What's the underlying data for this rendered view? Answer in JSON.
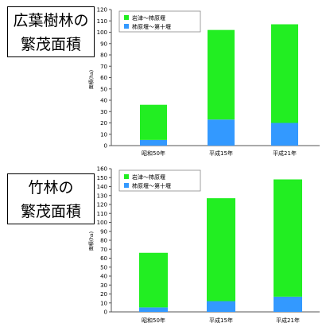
{
  "labels": {
    "chart1": [
      "広葉樹林の",
      "繁茂面積"
    ],
    "chart2": [
      "竹林の",
      "繁茂面積"
    ]
  },
  "chart_data": [
    {
      "type": "bar",
      "stacked": true,
      "categories": [
        "昭和50年",
        "平成15年",
        "平成21年"
      ],
      "series": [
        {
          "name": "柿原堰～第十堰",
          "color": "#3399ff",
          "values": [
            5,
            23,
            20
          ]
        },
        {
          "name": "岩津～柿原堰",
          "color": "#22ee22",
          "values": [
            31,
            79,
            87
          ]
        }
      ],
      "ylabel": "面積(ha)",
      "ylim": [
        0,
        120
      ],
      "ystep": 10,
      "legend": "top-left",
      "grid": false
    },
    {
      "type": "bar",
      "stacked": true,
      "categories": [
        "昭和50年",
        "平成15年",
        "平成21年"
      ],
      "series": [
        {
          "name": "柿原堰～第十堰",
          "color": "#3399ff",
          "values": [
            5,
            12,
            17
          ]
        },
        {
          "name": "岩津～柿原堰",
          "color": "#22ee22",
          "values": [
            61,
            115,
            131
          ]
        }
      ],
      "ylabel": "面積(ha)",
      "ylim": [
        0,
        160
      ],
      "ystep": 10,
      "legend": "top-left",
      "grid": false
    }
  ]
}
